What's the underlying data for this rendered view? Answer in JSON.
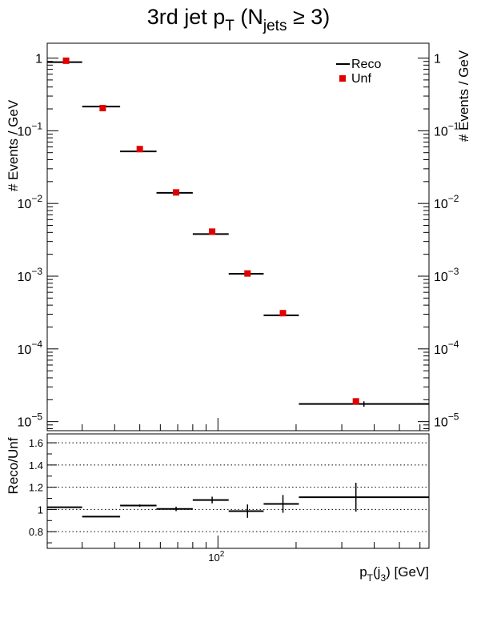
{
  "chart_data": [
    {
      "type": "scatter",
      "title": "3rd jet p",
      "title_sub": "T",
      "title_paren_open": "(N",
      "title_sub2": "jets",
      "title_paren_close": "≥ 3)",
      "ylabel": "# Events / GeV",
      "yscale": "log",
      "ylim": [
        7.5e-06,
        1.6
      ],
      "ytick_labels": [
        {
          "mant": "10",
          "exp": "−5"
        },
        {
          "mant": "10",
          "exp": "−4"
        },
        {
          "mant": "10",
          "exp": "−3"
        },
        {
          "mant": "10",
          "exp": "−2"
        },
        {
          "mant": "10",
          "exp": "−1"
        },
        {
          "mant": "1",
          "exp": ""
        }
      ],
      "legend": {
        "placement": "top-right",
        "entries": [
          {
            "label": "Reco",
            "marker": "line",
            "color": "#000000"
          },
          {
            "label": "Unf",
            "marker": "square",
            "color": "#e00000"
          }
        ]
      },
      "series": [
        {
          "name": "Reco",
          "x_low": [
            22,
            30,
            42,
            58,
            80,
            110,
            150,
            205
          ],
          "x_high": [
            30,
            42,
            58,
            80,
            110,
            150,
            205,
            650
          ],
          "y": [
            0.88,
            0.215,
            0.052,
            0.014,
            0.0038,
            0.00108,
            0.00029,
            1.75e-05
          ],
          "yerr": [
            0.004,
            0.002,
            0.0005,
            0.0002,
            0.0001,
            3e-05,
            1e-05,
            1.5e-06
          ]
        },
        {
          "name": "Unf",
          "x": [
            26,
            36,
            50,
            69,
            95,
            130,
            178,
            340
          ],
          "y": [
            0.92,
            0.205,
            0.056,
            0.0142,
            0.0041,
            0.00109,
            0.00031,
            1.9e-05
          ]
        }
      ]
    },
    {
      "type": "scatter",
      "ylabel": "Reco/Unf",
      "xlabel_main": "p",
      "xlabel_sub1": "T",
      "xlabel_mid": "(j",
      "xlabel_sub2": "3",
      "xlabel_end": ") [GeV]",
      "xscale": "log",
      "xlim": [
        22,
        650
      ],
      "ylim": [
        0.65,
        1.68
      ],
      "yticks": [
        0.8,
        1.0,
        1.2,
        1.4,
        1.6
      ],
      "ytick_labels": [
        "0.8",
        "1",
        "1.2",
        "1.4",
        "1.6"
      ],
      "grid_lines": [
        0.8,
        1.0,
        1.2,
        1.4,
        1.6
      ],
      "xtick_label": {
        "mant": "10",
        "exp": "2"
      },
      "series": [
        {
          "name": "Reco/Unf",
          "x_low": [
            22,
            30,
            42,
            58,
            80,
            110,
            150,
            205
          ],
          "x_high": [
            30,
            42,
            58,
            80,
            110,
            150,
            205,
            650
          ],
          "x": [
            26,
            36,
            50,
            69,
            95,
            130,
            178,
            340
          ],
          "y": [
            1.02,
            0.935,
            1.035,
            1.005,
            1.085,
            0.985,
            1.05,
            1.11
          ],
          "yerr": [
            0.005,
            0.005,
            0.01,
            0.02,
            0.03,
            0.06,
            0.08,
            0.13
          ]
        }
      ]
    }
  ]
}
